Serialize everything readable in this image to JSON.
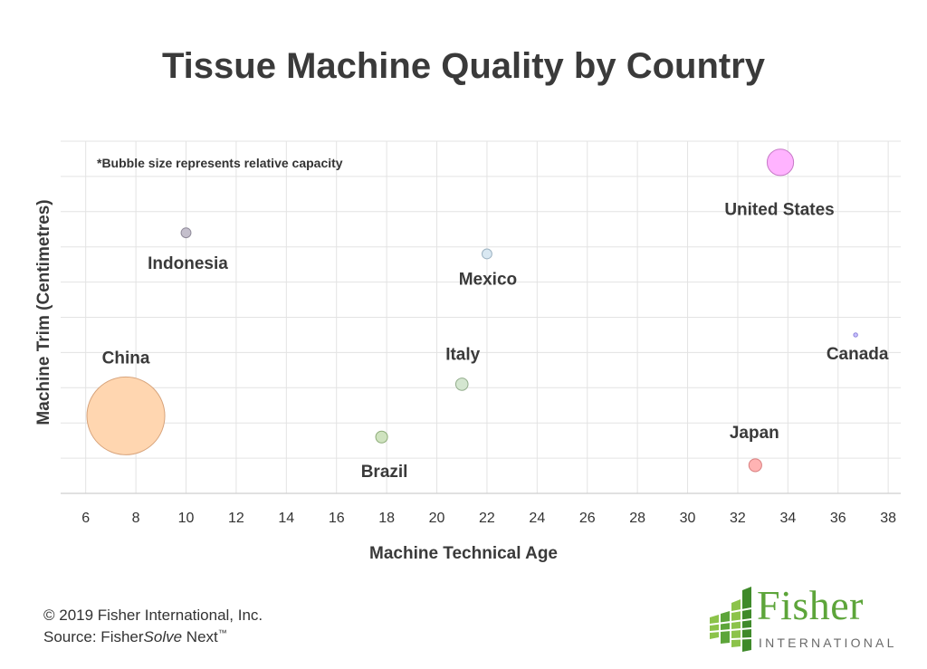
{
  "chart_data": {
    "type": "scatter",
    "title": "Tissue Machine Quality by Country",
    "xlabel": "Machine Technical Age",
    "ylabel": "Machine Trim (Centimetres)",
    "xlim": [
      5,
      38.5
    ],
    "ylim": [
      0,
      10
    ],
    "x_ticks": [
      6,
      8,
      10,
      12,
      14,
      16,
      18,
      20,
      22,
      24,
      26,
      28,
      30,
      32,
      34,
      36,
      38
    ],
    "y_tick_labels_shown": false,
    "grid": true,
    "annotation": "*Bubble size represents relative capacity",
    "bubbles": [
      {
        "label": "China",
        "x": 7.6,
        "y": 2.2,
        "size": 100,
        "color": "#ffd6b0",
        "stroke": "#d7a37b"
      },
      {
        "label": "Indonesia",
        "x": 10.0,
        "y": 7.4,
        "size": 1.6,
        "color": "#c4bfcc",
        "stroke": "#8f8a99"
      },
      {
        "label": "Brazil",
        "x": 17.8,
        "y": 1.6,
        "size": 2.3,
        "color": "#cfe3bf",
        "stroke": "#8fad7a"
      },
      {
        "label": "Italy",
        "x": 21.0,
        "y": 3.1,
        "size": 2.5,
        "color": "#d4e6d0",
        "stroke": "#93ad8c"
      },
      {
        "label": "Mexico",
        "x": 22.0,
        "y": 6.8,
        "size": 1.6,
        "color": "#d9e8f2",
        "stroke": "#9db3c2"
      },
      {
        "label": "Japan",
        "x": 32.7,
        "y": 0.8,
        "size": 2.7,
        "color": "#ffb3b3",
        "stroke": "#d98080"
      },
      {
        "label": "United States",
        "x": 33.7,
        "y": 9.4,
        "size": 11.5,
        "color": "#ffb3ff",
        "stroke": "#c77ac7"
      },
      {
        "label": "Canada",
        "x": 36.7,
        "y": 4.5,
        "size": 0.05,
        "color": "#c9c2ff",
        "stroke": "#8c82d9"
      }
    ]
  },
  "footer": {
    "copyright": "© 2019 Fisher International, Inc.",
    "source_prefix": "Source: Fisher",
    "source_italic": "Solve",
    "source_suffix": " Next",
    "trademark": "™"
  },
  "logo": {
    "word": "Fisher",
    "sub": "INTERNATIONAL",
    "colors": [
      "#5da53a",
      "#8cc34a",
      "#3f8a2a"
    ]
  }
}
